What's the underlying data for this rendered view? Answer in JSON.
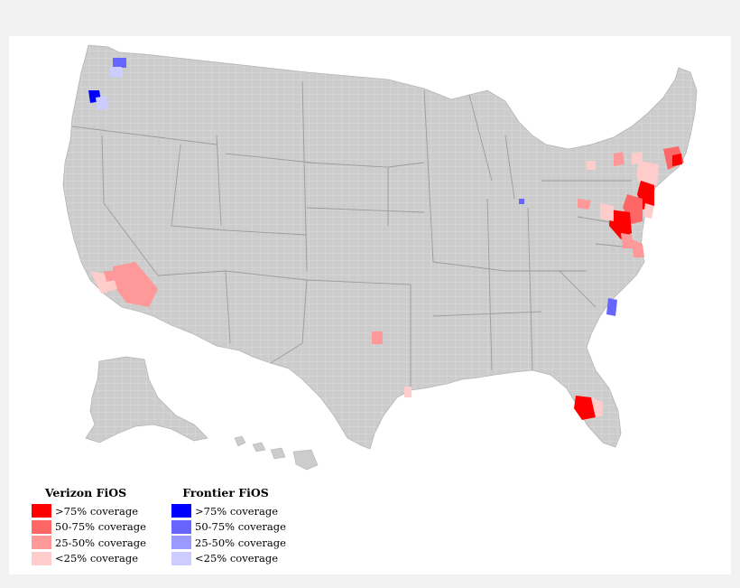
{
  "legend": {
    "verizon": {
      "title": "Verizon FiOS",
      "items": [
        {
          "label": ">75% coverage",
          "color": "#ff0000"
        },
        {
          "label": "50-75% coverage",
          "color": "#ff6666"
        },
        {
          "label": "25-50% coverage",
          "color": "#ff9999"
        },
        {
          "label": "<25% coverage",
          "color": "#ffcccc"
        }
      ]
    },
    "frontier": {
      "title": "Frontier FiOS",
      "items": [
        {
          "label": ">75% coverage",
          "color": "#0000ff"
        },
        {
          "label": "50-75% coverage",
          "color": "#6666ff"
        },
        {
          "label": "25-50% coverage",
          "color": "#9999ff"
        },
        {
          "label": "<25% coverage",
          "color": "#ccccff"
        }
      ]
    }
  },
  "map": {
    "base_color": "#cccccc",
    "border_color": "#ffffff"
  }
}
